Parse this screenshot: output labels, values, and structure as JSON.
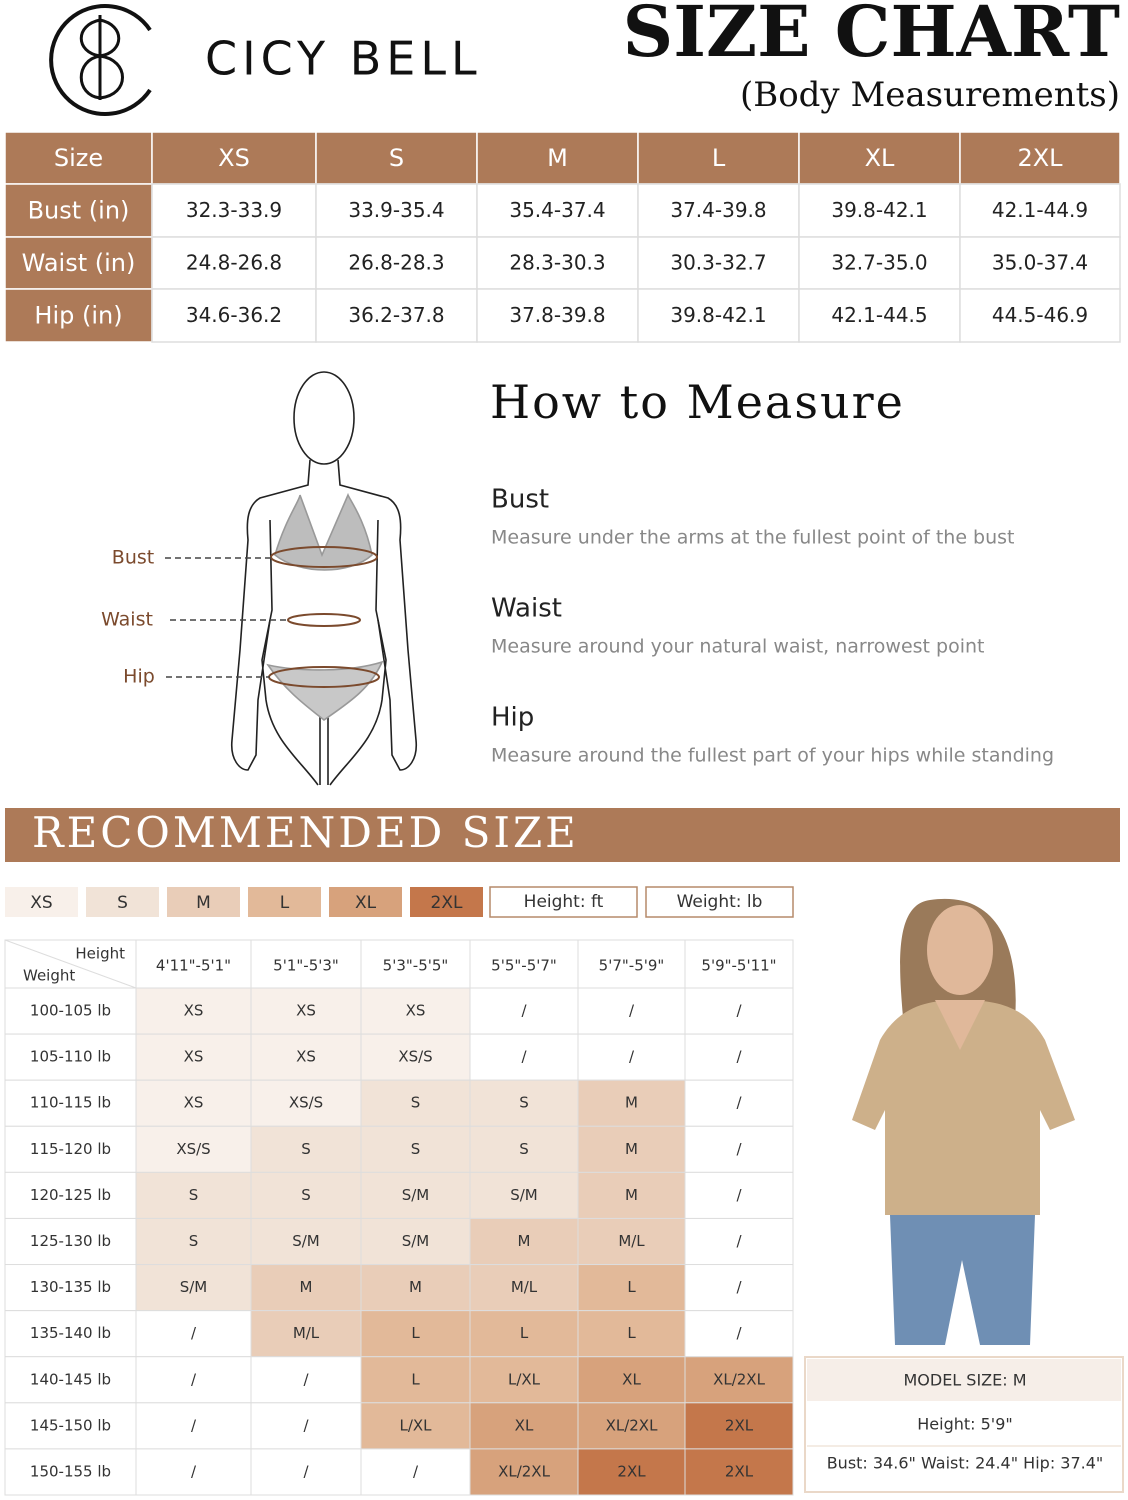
{
  "brand": "CICY BELL",
  "title": "SIZE CHART",
  "subtitle": "(Body Measurements)",
  "size_table": {
    "header": [
      "Size",
      "XS",
      "S",
      "M",
      "L",
      "XL",
      "2XL"
    ],
    "rows": [
      [
        "Bust (in)",
        "32.3-33.9",
        "33.9-35.4",
        "35.4-37.4",
        "37.4-39.8",
        "39.8-42.1",
        "42.1-44.9"
      ],
      [
        "Waist (in)",
        "24.8-26.8",
        "26.8-28.3",
        "28.3-30.3",
        "30.3-32.7",
        "32.7-35.0",
        "35.0-37.4"
      ],
      [
        "Hip (in)",
        "34.6-36.2",
        "36.2-37.8",
        "37.8-39.8",
        "39.8-42.1",
        "42.1-44.5",
        "44.5-46.9"
      ]
    ]
  },
  "how_to": {
    "title": "How to Measure",
    "figure_labels": [
      "Bust",
      "Waist",
      "Hip"
    ],
    "items": [
      {
        "name": "Bust",
        "text": "Measure under the arms at the fullest point of the bust"
      },
      {
        "name": "Waist",
        "text": "Measure around your natural waist, narrowest point"
      },
      {
        "name": "Hip",
        "text": "Measure around the fullest part of your hips while standing"
      }
    ]
  },
  "recommended": {
    "title": "RECOMMENDED SIZE",
    "legend": {
      "sizes": [
        "XS",
        "S",
        "M",
        "L",
        "XL",
        "2XL"
      ],
      "colors": [
        "#f8f0ea",
        "#f1e3d7",
        "#e9cdb8",
        "#e2b999",
        "#d7a27c",
        "#c4774b"
      ],
      "units": [
        "Height: ft",
        "Weight: lb"
      ]
    },
    "table": {
      "corner": [
        "Height",
        "Weight"
      ],
      "heights": [
        "4'11\"-5'1\"",
        "5'1\"-5'3\"",
        "5'3\"-5'5\"",
        "5'5\"-5'7\"",
        "5'7\"-5'9\"",
        "5'9\"-5'11\""
      ],
      "rows": [
        [
          "100-105 lb",
          "XS",
          "XS",
          "XS",
          "/",
          "/",
          "/"
        ],
        [
          "105-110 lb",
          "XS",
          "XS",
          "XS/S",
          "/",
          "/",
          "/"
        ],
        [
          "110-115 lb",
          "XS",
          "XS/S",
          "S",
          "S",
          "M",
          "/"
        ],
        [
          "115-120 lb",
          "XS/S",
          "S",
          "S",
          "S",
          "M",
          "/"
        ],
        [
          "120-125 lb",
          "S",
          "S",
          "S/M",
          "S/M",
          "M",
          "/"
        ],
        [
          "125-130 lb",
          "S",
          "S/M",
          "S/M",
          "M",
          "M/L",
          "/"
        ],
        [
          "130-135 lb",
          "S/M",
          "M",
          "M",
          "M/L",
          "L",
          "/"
        ],
        [
          "135-140 lb",
          "/",
          "M/L",
          "L",
          "L",
          "L",
          "/"
        ],
        [
          "140-145 lb",
          "/",
          "/",
          "L",
          "L/XL",
          "XL",
          "XL/2XL"
        ],
        [
          "145-150 lb",
          "/",
          "/",
          "L/XL",
          "XL",
          "XL/2XL",
          "2XL"
        ],
        [
          "150-155 lb",
          "/",
          "/",
          "/",
          "XL/2XL",
          "2XL",
          "2XL"
        ]
      ]
    }
  },
  "model": {
    "size": "MODEL SIZE: M",
    "height": "Height: 5'9\"",
    "measurements": "Bust: 34.6\" Waist: 24.4\" Hip: 37.4\""
  }
}
